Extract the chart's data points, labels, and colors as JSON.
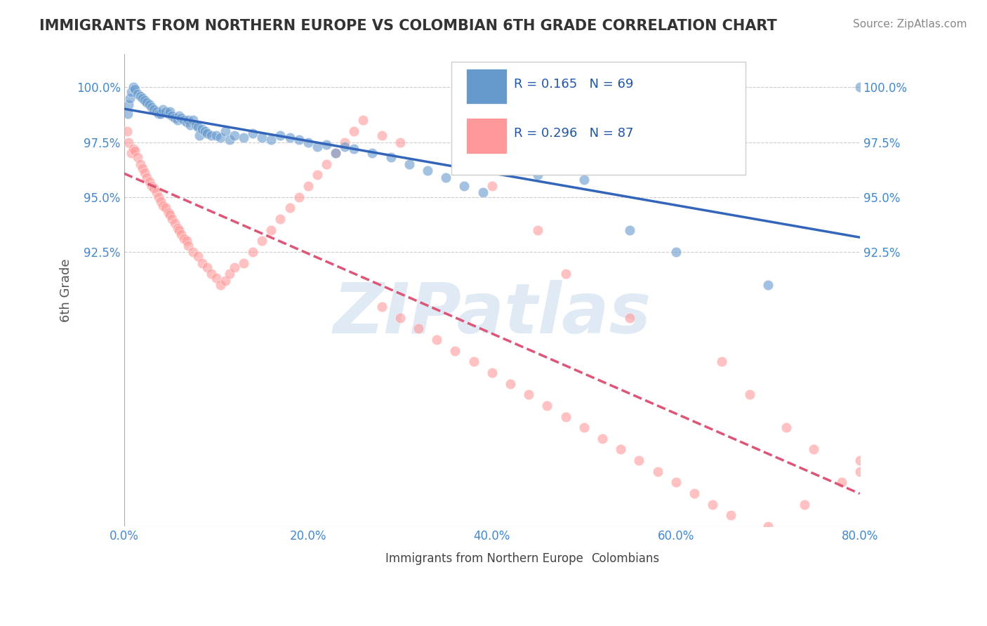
{
  "title": "IMMIGRANTS FROM NORTHERN EUROPE VS COLOMBIAN 6TH GRADE CORRELATION CHART",
  "source_text": "Source: ZipAtlas.com",
  "xlabel": "",
  "ylabel": "6th Grade",
  "watermark": "ZIPatlas",
  "xlim": [
    0.0,
    80.0
  ],
  "ylim": [
    80.0,
    101.5
  ],
  "blue_R": 0.165,
  "blue_N": 69,
  "pink_R": 0.296,
  "pink_N": 87,
  "blue_color": "#6699CC",
  "pink_color": "#FF9999",
  "legend_blue_label": "Immigrants from Northern Europe",
  "legend_pink_label": "Colombians",
  "blue_scatter_x": [
    0.4,
    0.5,
    0.6,
    0.8,
    1.0,
    1.2,
    1.5,
    1.8,
    2.0,
    2.2,
    2.5,
    2.8,
    3.0,
    3.2,
    3.5,
    3.8,
    4.0,
    4.2,
    4.5,
    4.8,
    5.0,
    5.2,
    5.5,
    5.8,
    6.0,
    6.2,
    6.5,
    6.8,
    7.0,
    7.2,
    7.5,
    7.8,
    8.0,
    8.2,
    8.5,
    8.8,
    9.0,
    9.5,
    10.0,
    10.5,
    11.0,
    11.5,
    12.0,
    13.0,
    14.0,
    15.0,
    16.0,
    17.0,
    18.0,
    19.0,
    20.0,
    21.0,
    22.0,
    23.0,
    24.0,
    25.0,
    27.0,
    29.0,
    31.0,
    33.0,
    35.0,
    37.0,
    39.0,
    45.0,
    50.0,
    55.0,
    60.0,
    70.0,
    80.0
  ],
  "blue_scatter_y": [
    98.8,
    99.2,
    99.5,
    99.8,
    100.0,
    99.9,
    99.7,
    99.6,
    99.5,
    99.4,
    99.3,
    99.2,
    99.1,
    99.0,
    98.9,
    98.8,
    98.8,
    99.0,
    98.9,
    98.8,
    98.9,
    98.7,
    98.6,
    98.5,
    98.7,
    98.6,
    98.5,
    98.4,
    98.5,
    98.3,
    98.5,
    98.3,
    98.2,
    97.8,
    98.1,
    98.0,
    97.9,
    97.8,
    97.8,
    97.7,
    98.0,
    97.6,
    97.8,
    97.7,
    97.9,
    97.7,
    97.6,
    97.8,
    97.7,
    97.6,
    97.5,
    97.3,
    97.4,
    97.0,
    97.3,
    97.2,
    97.0,
    96.8,
    96.5,
    96.2,
    95.9,
    95.5,
    95.2,
    96.0,
    95.8,
    93.5,
    92.5,
    91.0,
    100.0
  ],
  "pink_scatter_x": [
    0.3,
    0.5,
    0.8,
    1.0,
    1.2,
    1.5,
    1.8,
    2.0,
    2.2,
    2.5,
    2.8,
    3.0,
    3.2,
    3.5,
    3.8,
    4.0,
    4.2,
    4.5,
    4.8,
    5.0,
    5.2,
    5.5,
    5.8,
    6.0,
    6.2,
    6.5,
    6.8,
    7.0,
    7.5,
    8.0,
    8.5,
    9.0,
    9.5,
    10.0,
    10.5,
    11.0,
    11.5,
    12.0,
    13.0,
    14.0,
    15.0,
    16.0,
    17.0,
    18.0,
    19.0,
    20.0,
    21.0,
    22.0,
    23.0,
    24.0,
    25.0,
    26.0,
    28.0,
    30.0,
    32.0,
    34.0,
    36.0,
    38.0,
    40.0,
    42.0,
    44.0,
    46.0,
    48.0,
    50.0,
    52.0,
    54.0,
    56.0,
    58.0,
    60.0,
    62.0,
    64.0,
    66.0,
    70.0,
    74.0,
    78.0,
    80.0,
    28.0,
    30.0,
    40.0,
    45.0,
    48.0,
    55.0,
    65.0,
    68.0,
    72.0,
    75.0,
    80.0
  ],
  "pink_scatter_y": [
    98.0,
    97.5,
    97.0,
    97.2,
    97.1,
    96.8,
    96.5,
    96.3,
    96.1,
    95.9,
    95.7,
    95.5,
    95.4,
    95.2,
    95.0,
    94.8,
    94.6,
    94.5,
    94.3,
    94.2,
    94.0,
    93.8,
    93.6,
    93.5,
    93.3,
    93.1,
    93.0,
    92.8,
    92.5,
    92.3,
    92.0,
    91.8,
    91.5,
    91.3,
    91.0,
    91.2,
    91.5,
    91.8,
    92.0,
    92.5,
    93.0,
    93.5,
    94.0,
    94.5,
    95.0,
    95.5,
    96.0,
    96.5,
    97.0,
    97.5,
    98.0,
    98.5,
    90.0,
    89.5,
    89.0,
    88.5,
    88.0,
    87.5,
    87.0,
    86.5,
    86.0,
    85.5,
    85.0,
    84.5,
    84.0,
    83.5,
    83.0,
    82.5,
    82.0,
    81.5,
    81.0,
    80.5,
    80.0,
    81.0,
    82.0,
    83.0,
    97.8,
    97.5,
    95.5,
    93.5,
    91.5,
    89.5,
    87.5,
    86.0,
    84.5,
    83.5,
    82.5
  ],
  "background_color": "#FFFFFF",
  "grid_color": "#CCCCCC",
  "title_color": "#333333",
  "axis_label_color": "#555555",
  "tick_label_color": "#4488CC",
  "watermark_color": "#CCDDEE"
}
